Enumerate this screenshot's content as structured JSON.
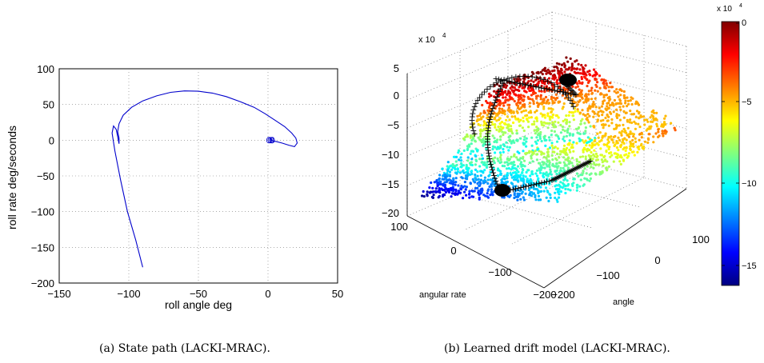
{
  "chart_data": [
    {
      "type": "line",
      "caption": "(a) State path (LACKI-MRAC).",
      "xlabel": "roll angle deg",
      "ylabel": "roll rate deg/seconds",
      "xlim": [
        -150,
        50
      ],
      "ylim": [
        -200,
        100
      ],
      "xticks": [
        "−150",
        "−100",
        "−50",
        "0",
        "50"
      ],
      "yticks": [
        "100",
        "50",
        "0",
        "−50",
        "−100",
        "−150",
        "−200"
      ],
      "grid": true,
      "series_color": "#0000cc",
      "x": [
        -90,
        -95,
        -101,
        -106,
        -110,
        -112,
        -111,
        -109,
        -108,
        -107,
        -107,
        -108,
        -107,
        -104,
        -98,
        -90,
        -80,
        -70,
        -60,
        -50,
        -40,
        -30,
        -20,
        -10,
        -2,
        5,
        12,
        17,
        20,
        21,
        19,
        15,
        10,
        6,
        3,
        2,
        2.2,
        2.8,
        3.2
      ],
      "y": [
        -178,
        -140,
        -100,
        -55,
        -15,
        10,
        20,
        15,
        5,
        -5,
        3,
        12,
        23,
        35,
        46,
        55,
        62,
        67,
        69,
        68.5,
        66,
        61,
        54,
        46,
        37,
        28,
        19,
        10,
        3,
        -4,
        -9,
        -7,
        -4,
        -2,
        -1,
        0,
        1,
        0,
        0.5
      ]
    },
    {
      "type": "scatter3d",
      "caption": "(b) Learned drift model (LACKI-MRAC).",
      "xlabel": "angle",
      "ylabel": "angular rate",
      "zlabel_exponent": "x 10",
      "zlabel_exponent_power": "4",
      "zticks": [
        "5",
        "0",
        "−5",
        "−10",
        "−15",
        "−20"
      ],
      "angular_rate_ticks": [
        "100",
        "0",
        "−100",
        "−200"
      ],
      "angle_ticks": [
        "−200",
        "−100",
        "0",
        "100"
      ],
      "zlim": [
        -200000,
        50000
      ],
      "colorbar": {
        "colormap": "jet",
        "exponent": "x 10",
        "exponent_power": "4",
        "ticks": [
          "0",
          "−5",
          "−10",
          "−15"
        ],
        "range": [
          -160000,
          0
        ]
      },
      "path_marker": "+",
      "path_color": "#000000"
    }
  ]
}
